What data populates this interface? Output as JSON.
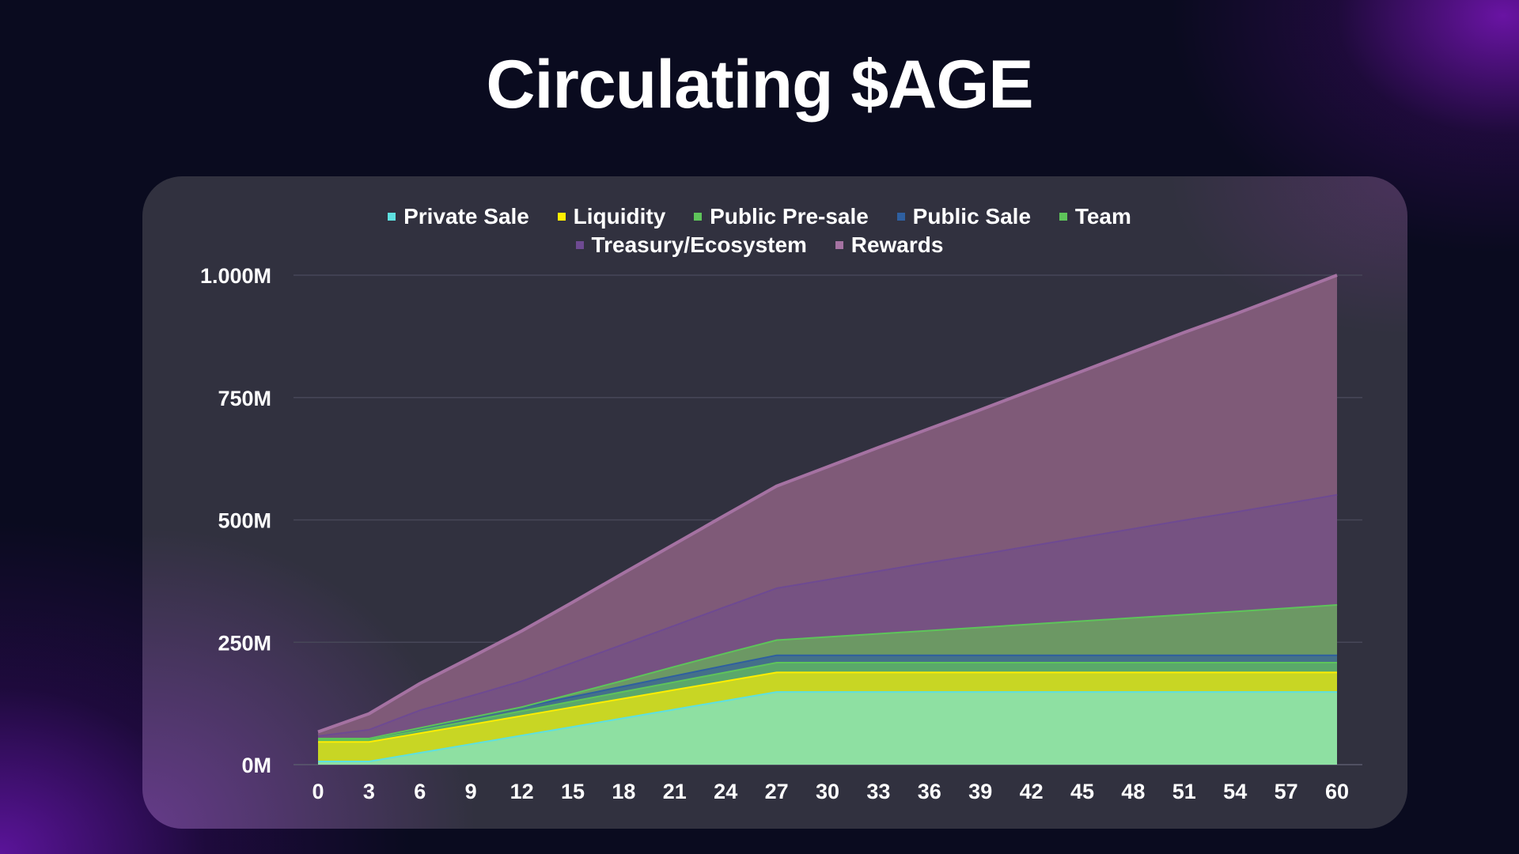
{
  "title": "Circulating $AGE",
  "chart_data": {
    "type": "area",
    "stacked": true,
    "title": "Circulating $AGE",
    "xlabel": "",
    "ylabel": "",
    "x": [
      0,
      3,
      6,
      9,
      12,
      15,
      18,
      21,
      24,
      27,
      30,
      33,
      36,
      39,
      42,
      45,
      48,
      51,
      54,
      57,
      60
    ],
    "x_tick_labels": [
      "0",
      "3",
      "6",
      "9",
      "12",
      "15",
      "18",
      "21",
      "24",
      "27",
      "30",
      "33",
      "36",
      "39",
      "42",
      "45",
      "48",
      "51",
      "54",
      "57",
      "60"
    ],
    "ylim": [
      0,
      1000
    ],
    "y_unit": "M",
    "y_ticks": [
      0,
      250,
      500,
      750,
      1000
    ],
    "y_tick_labels": [
      "0M",
      "250M",
      "500M",
      "750M",
      "1.000M"
    ],
    "grid": "horizontal",
    "legend_position": "top",
    "series": [
      {
        "name": "Private Sale",
        "color": "#5ee0e0",
        "fill": "#8ee0a2",
        "values": [
          8,
          8,
          25.75,
          43.5,
          61.25,
          79,
          96.75,
          114.5,
          132.25,
          150,
          150,
          150,
          150,
          150,
          150,
          150,
          150,
          150,
          150,
          150,
          150
        ]
      },
      {
        "name": "Liquidity",
        "color": "#ffee00",
        "fill": "#c8d624",
        "values": [
          40,
          40,
          40,
          40,
          40,
          40,
          40,
          40,
          40,
          40,
          40,
          40,
          40,
          40,
          40,
          40,
          40,
          40,
          40,
          40,
          40
        ]
      },
      {
        "name": "Public Pre-sale",
        "color": "#5ec45a",
        "fill": "#5aa86a",
        "values": [
          4,
          4,
          6,
          8,
          10,
          12,
          14,
          16,
          18,
          20,
          20,
          20,
          20,
          20,
          20,
          20,
          20,
          20,
          20,
          20,
          20
        ]
      },
      {
        "name": "Public Sale",
        "color": "#2e5fa0",
        "fill": "#44708a",
        "values": [
          3,
          3,
          5,
          6.5,
          8,
          9.5,
          11,
          12.5,
          14,
          15,
          15,
          15,
          15,
          15,
          15,
          15,
          15,
          15,
          15,
          15,
          15
        ]
      },
      {
        "name": "Team",
        "color": "#5ec45a",
        "fill": "#6c9864",
        "values": [
          0,
          0,
          0,
          0,
          0,
          6,
          12,
          19,
          25,
          31,
          37.5,
          44,
          50.5,
          57,
          63.5,
          70,
          76.5,
          83,
          89.5,
          96,
          103
        ]
      },
      {
        "name": "Treasury/Ecosystem",
        "color": "#6e4a92",
        "fill": "#765282",
        "values": [
          5,
          18,
          36,
          44,
          53,
          63.5,
          74,
          84,
          95,
          106,
          117,
          128,
          139,
          149,
          160,
          171,
          182,
          193,
          203,
          214,
          225
        ]
      },
      {
        "name": "Rewards",
        "color": "#a572a2",
        "fill": "#7f5a78",
        "values": [
          7,
          31,
          53,
          77,
          101,
          122,
          144,
          165,
          186,
          207,
          229,
          251,
          272,
          294,
          316,
          338,
          360,
          382,
          403,
          425,
          447
        ]
      }
    ]
  }
}
